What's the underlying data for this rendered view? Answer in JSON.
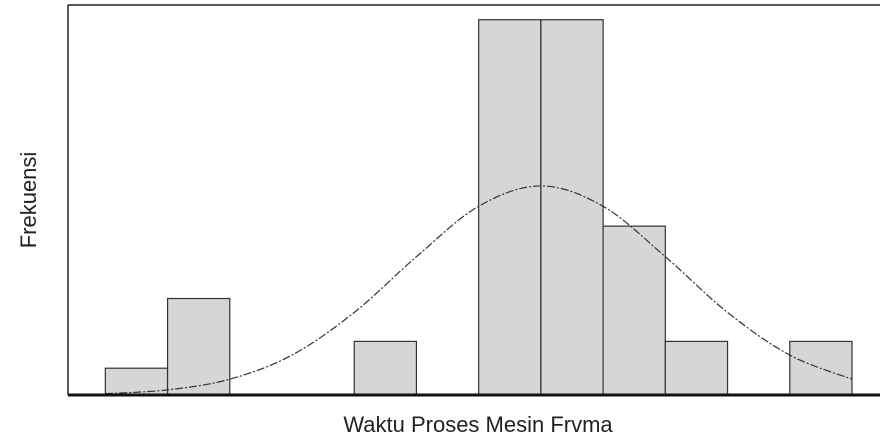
{
  "chart_data": {
    "type": "histogram",
    "xlabel": "Waktu Proses Mesin Frvma",
    "ylabel": "Frekuensi",
    "bins": [
      0,
      1,
      2,
      3,
      4,
      5,
      6,
      7,
      8,
      9,
      10,
      11,
      12
    ],
    "counts": [
      1,
      3.6,
      0,
      0,
      2,
      0,
      14,
      14,
      6.3,
      2,
      0,
      2
    ],
    "color": "#d6d6d6",
    "edge_color": "#333333",
    "curve": {
      "x": [
        0,
        1,
        2,
        3,
        4,
        5,
        6,
        7,
        8,
        9,
        10,
        11,
        12
      ],
      "y": [
        0.05,
        0.19,
        0.59,
        1.49,
        3.08,
        5.16,
        7.04,
        7.8,
        7.04,
        5.16,
        3.08,
        1.49,
        0.59
      ],
      "color": "#333333"
    },
    "xlim": [
      -0.6,
      12.45
    ],
    "ylim": [
      0,
      14.55
    ]
  }
}
